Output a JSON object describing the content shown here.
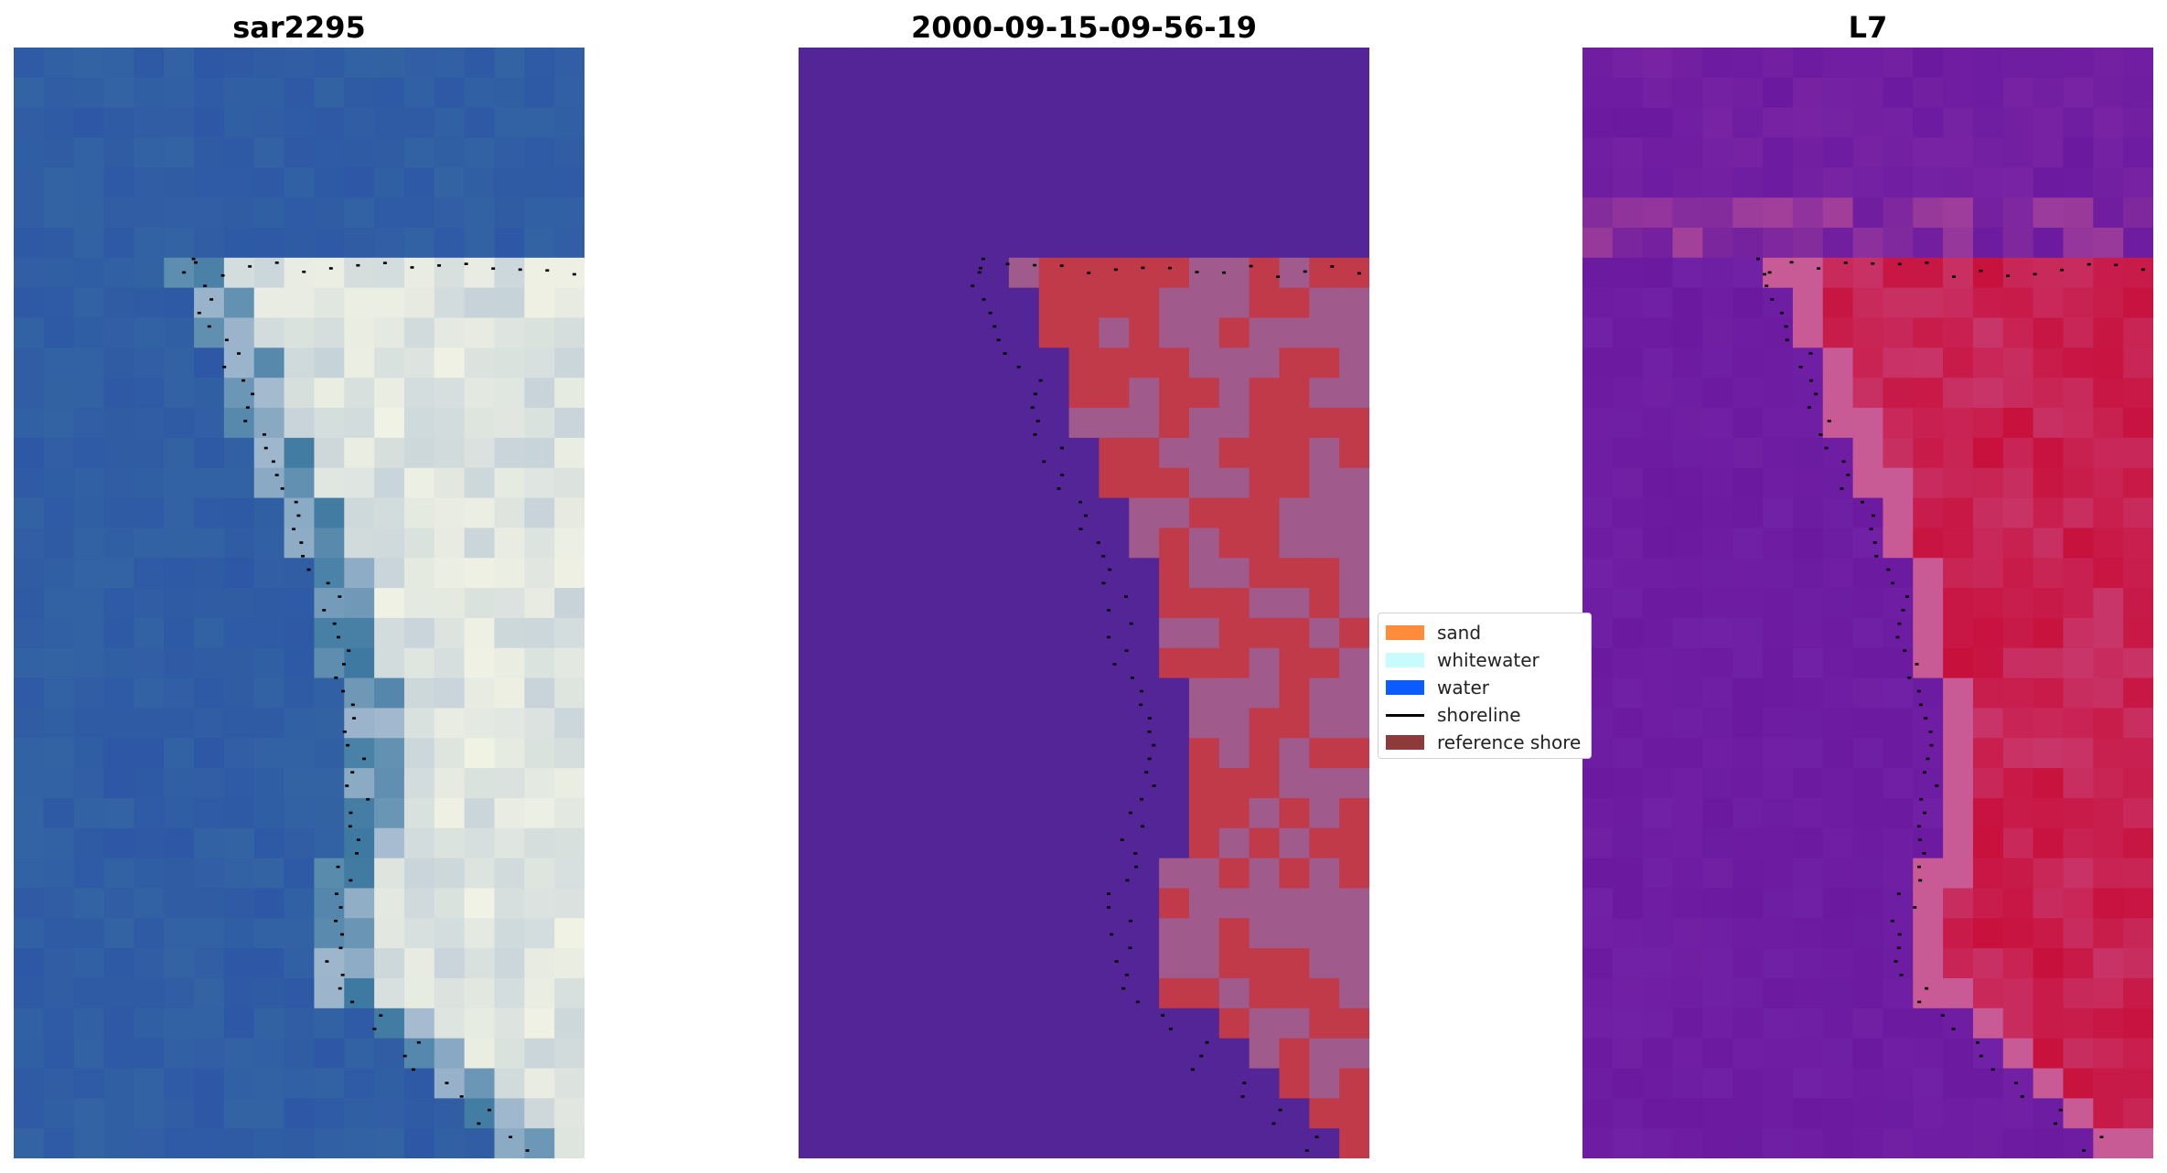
{
  "panels": [
    {
      "title": "sar2295",
      "image": "RGB satellite image of coastline"
    },
    {
      "title": "2000-09-15-09-56-19",
      "image": "classified image"
    },
    {
      "title": "L7",
      "image": "index image"
    }
  ],
  "legend": {
    "items": [
      {
        "label": "sand",
        "color": "#FF8C3A"
      },
      {
        "label": "whitewater",
        "color": "#C8FBFB"
      },
      {
        "label": "water",
        "color": "#0A5CFF"
      },
      {
        "label": "shoreline",
        "color": "#000000"
      },
      {
        "label": "reference shore",
        "color": "#8E3A3A"
      }
    ]
  },
  "colors": {
    "rgb_water": "#2E5BA8",
    "rgb_sand_white": "#F2F2E6",
    "class_background": "#5A2596",
    "class_sand": "#C03A4A",
    "class_mixed": "#A05A8C",
    "index_background": "#6B1AA0",
    "index_high": "#C8103C"
  }
}
